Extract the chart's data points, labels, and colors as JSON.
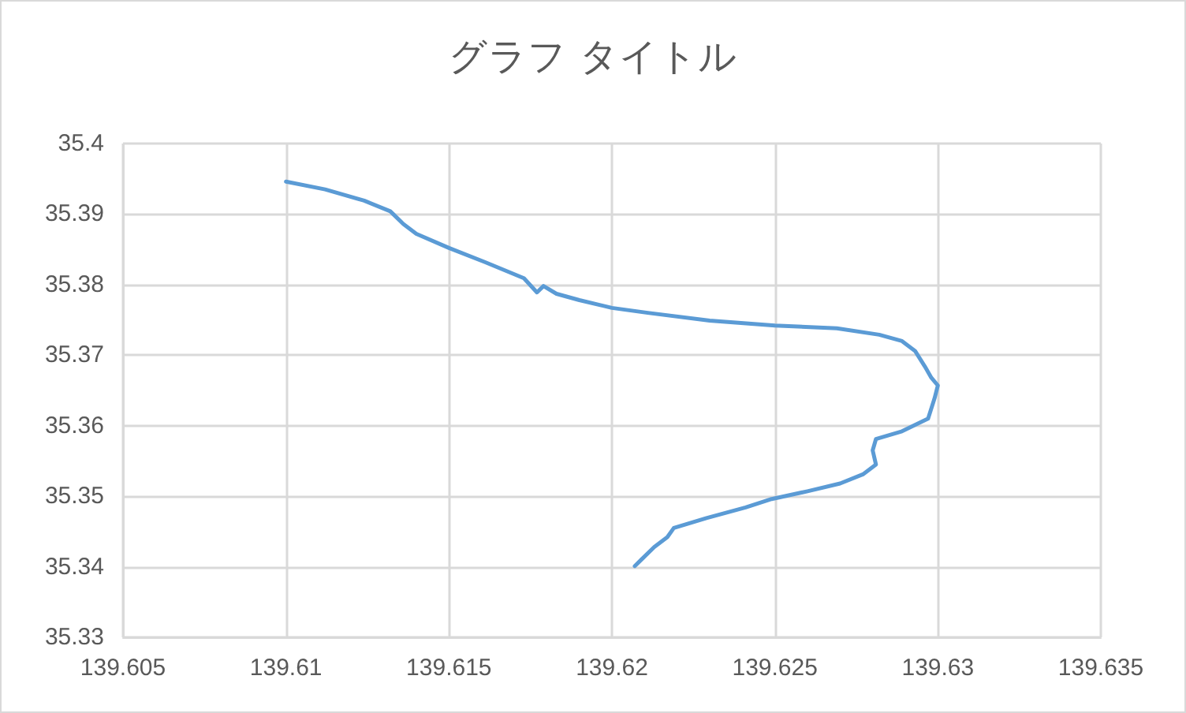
{
  "chart_data": {
    "type": "line",
    "title": "グラフ タイトル",
    "marker": "none",
    "grid": true,
    "xlim": [
      139.605,
      139.635
    ],
    "xticks": [
      139.605,
      139.61,
      139.615,
      139.62,
      139.625,
      139.63,
      139.635
    ],
    "ylim": [
      35.33,
      35.4
    ],
    "yticks": [
      35.33,
      35.34,
      35.35,
      35.36,
      35.37,
      35.38,
      35.39,
      35.4
    ],
    "series": [
      {
        "color": "#5b9bd5",
        "x": [
          139.61,
          139.6112,
          139.6124,
          139.6132,
          139.6136,
          139.614,
          139.615,
          139.6161,
          139.6173,
          139.6177,
          139.6179,
          139.6183,
          139.619,
          139.62,
          139.6211,
          139.623,
          139.625,
          139.6269,
          139.6282,
          139.6289,
          139.6293,
          139.6296,
          139.6298,
          139.63,
          139.6299,
          139.6297,
          139.6289,
          139.6281,
          139.628,
          139.6281,
          139.6277,
          139.627,
          139.626,
          139.6249,
          139.6241,
          139.6229,
          139.6219,
          139.6217,
          139.6213,
          139.6209,
          139.6207
        ],
        "values": [
          35.3946,
          35.3935,
          35.3919,
          35.3904,
          35.3886,
          35.3872,
          35.3852,
          35.3832,
          35.3809,
          35.3789,
          35.3798,
          35.3787,
          35.3778,
          35.3767,
          35.376,
          35.3749,
          35.3742,
          35.3738,
          35.3729,
          35.372,
          35.3706,
          35.3684,
          35.3668,
          35.3657,
          35.3639,
          35.361,
          35.3592,
          35.3581,
          35.3565,
          35.3545,
          35.3531,
          35.3518,
          35.3507,
          35.3496,
          35.3484,
          35.3469,
          35.3455,
          35.3442,
          35.3428,
          35.341,
          35.3401
        ]
      }
    ]
  }
}
